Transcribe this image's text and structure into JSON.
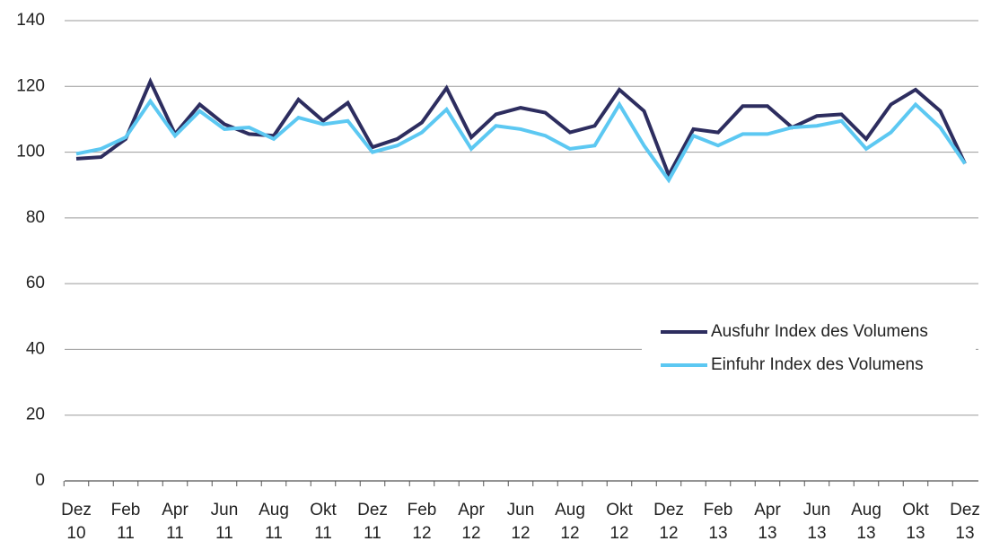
{
  "chart_data": {
    "type": "line",
    "categories": [
      "Dez 10",
      null,
      "Feb 11",
      null,
      "Apr 11",
      null,
      "Jun 11",
      null,
      "Aug 11",
      null,
      "Okt 11",
      null,
      "Dez 11",
      null,
      "Feb 12",
      null,
      "Apr 12",
      null,
      "Jun 12",
      null,
      "Aug 12",
      null,
      "Okt 12",
      null,
      "Dez 12",
      null,
      "Feb 13",
      null,
      "Apr 13",
      null,
      "Jun 13",
      null,
      "Aug 13",
      null,
      "Okt 13",
      null,
      "Dez 13"
    ],
    "series": [
      {
        "name": "Ausfuhr Index des Volumens",
        "color": "#2d2d5f",
        "values": [
          98,
          98.5,
          104,
          121.5,
          105.5,
          114.5,
          108.5,
          105.5,
          105,
          116,
          109.5,
          115,
          101.5,
          104,
          109,
          119.5,
          104.5,
          111.5,
          113.5,
          112,
          106,
          108,
          119,
          112.5,
          93,
          107,
          106,
          114,
          114,
          107.5,
          111,
          111.5,
          104,
          114.5,
          119,
          112.5,
          96.5
        ]
      },
      {
        "name": "Einfuhr Index des Volumens",
        "color": "#5cc8f2",
        "values": [
          99.5,
          101,
          104.5,
          115.5,
          105,
          112.5,
          107,
          107.5,
          104,
          110.5,
          108.5,
          109.5,
          100,
          102,
          106,
          113,
          101,
          108,
          107,
          105,
          101,
          102,
          114.5,
          102,
          91.5,
          105,
          102,
          105.5,
          105.5,
          107.5,
          108,
          109.5,
          101,
          106,
          114.5,
          107.5,
          96.5
        ]
      }
    ],
    "ylim": [
      0,
      140
    ],
    "yticks": [
      0,
      20,
      40,
      60,
      80,
      100,
      120,
      140
    ],
    "grid": true,
    "legend": "right"
  }
}
